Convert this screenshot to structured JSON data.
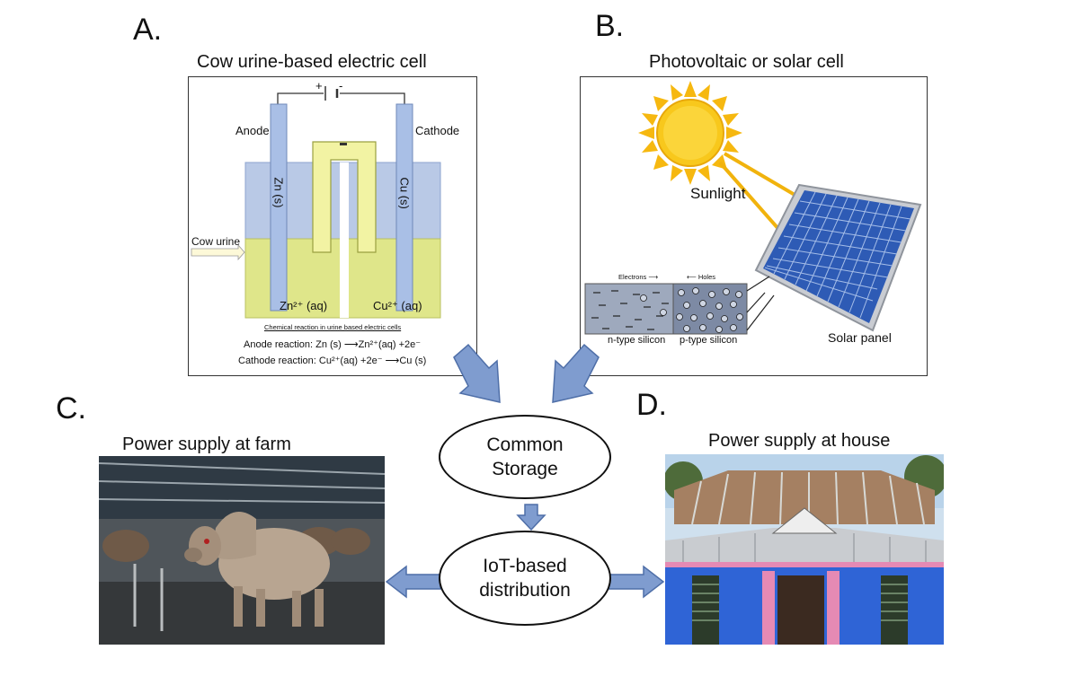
{
  "panel_a": {
    "letter": "A.",
    "title": "Cow urine-based electric cell",
    "battery_plus": "+",
    "battery_minus": "-",
    "anode_label": "Anode",
    "cathode_label": "Cathode",
    "zn_electrode": "Zn (s)",
    "cu_electrode": "Cu (s)",
    "input_label": "Cow urine",
    "zn_ion": "Zn²⁺ (aq)",
    "cu_ion": "Cu²⁺ (aq)",
    "reaction_caption": "Chemical reaction in urine based electric cells",
    "anode_reaction": "Anode reaction:  Zn (s) ⟶Zn²⁺(aq) +2e⁻",
    "cathode_reaction": "Cathode reaction:  Cu²⁺(aq) +2e⁻ ⟶Cu (s)"
  },
  "panel_b": {
    "letter": "B.",
    "title": "Photovoltaic or solar cell",
    "sunlight_label": "Sunlight",
    "electrons_label": "Electrons ⟶",
    "holes_label": "⟵ Holes",
    "n_type_label": "n-type silicon",
    "p_type_label": "p-type silicon",
    "panel_label": "Solar panel"
  },
  "panel_c": {
    "letter": "C.",
    "title": "Power supply at farm"
  },
  "panel_d": {
    "letter": "D.",
    "title": "Power supply at house"
  },
  "storage": {
    "label_line1": "Common",
    "label_line2": "Storage"
  },
  "distribution": {
    "label_line1": "IoT-based",
    "label_line2": "distribution"
  },
  "colors": {
    "arrow_fill": "#7f9ccf",
    "arrow_stroke": "#4f6fa8",
    "electrolyte_top": "#b9c9e6",
    "electrolyte_bottom": "#dfe68a",
    "electrode": "#a9bfe6",
    "sun": "#f7c21c",
    "solar_panel": "#2e5bb5"
  }
}
